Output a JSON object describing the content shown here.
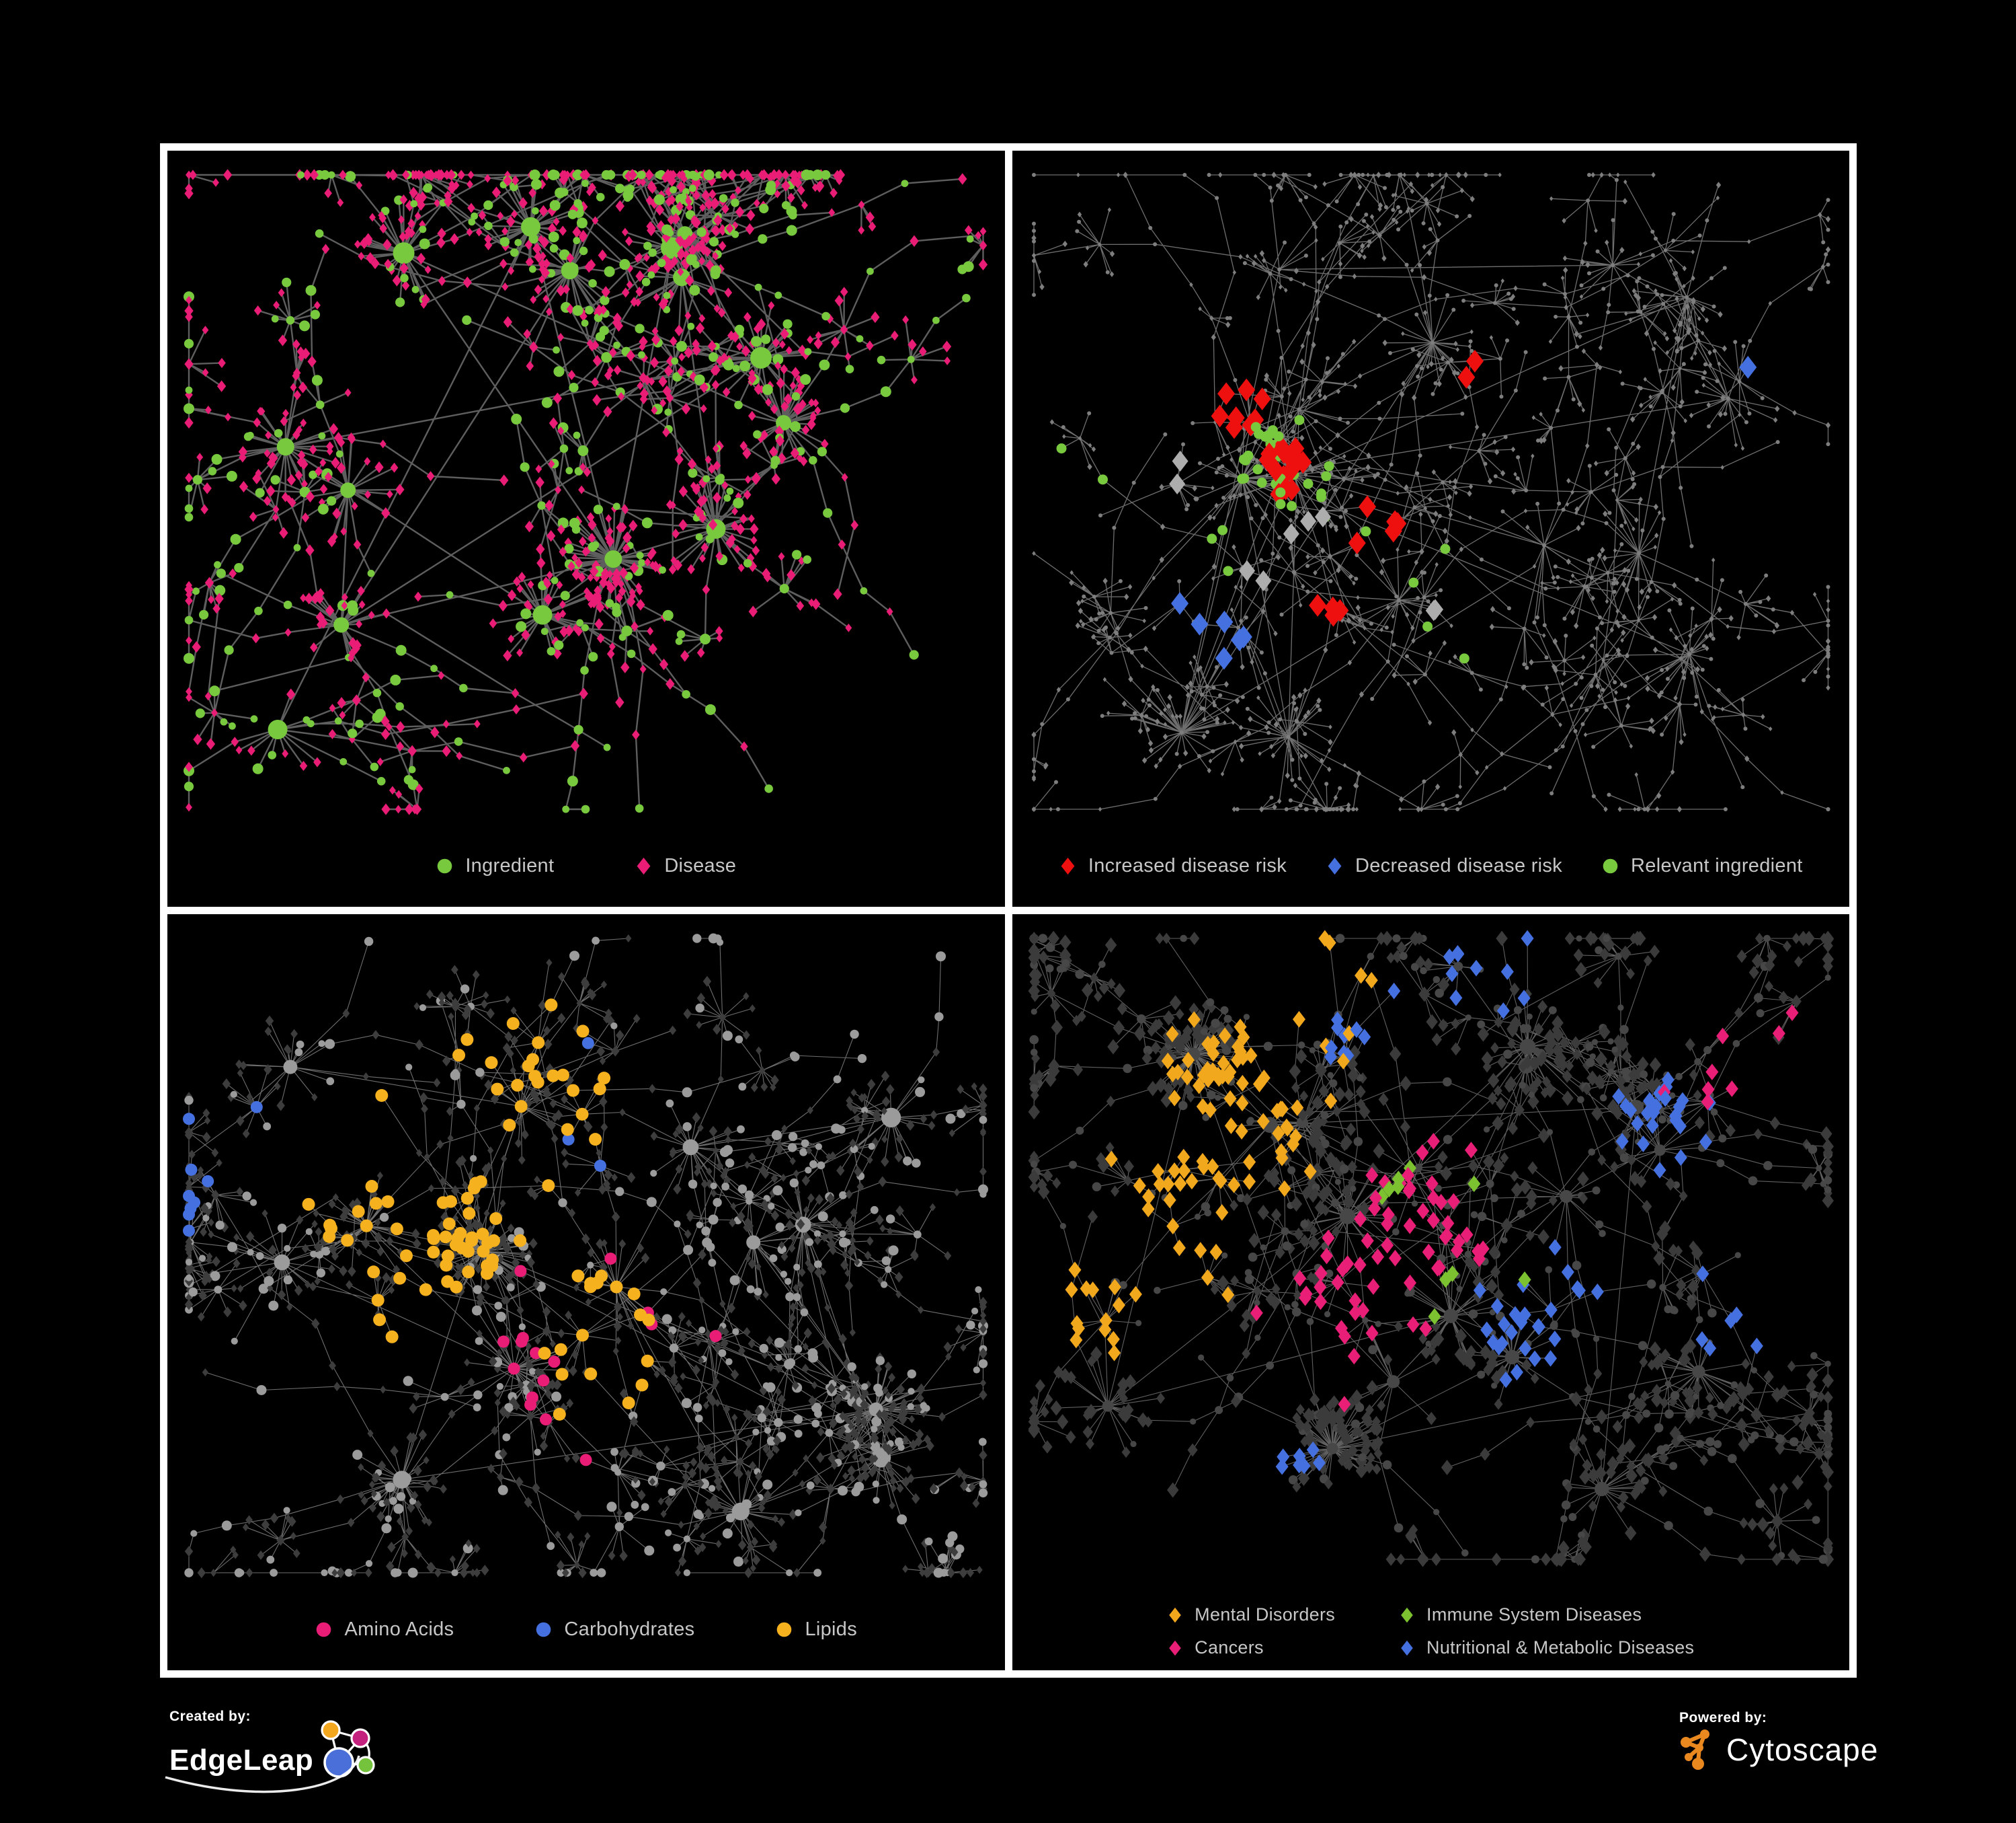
{
  "figure": {
    "background": "#000000",
    "frame_color": "#ffffff",
    "legend_text_color": "#C7C7C7"
  },
  "panels": [
    {
      "id": "ingredient-disease-network",
      "legend": {
        "columns": 1,
        "tight": false,
        "items": [
          {
            "shape": "circle",
            "color": "#78C93E",
            "label": "Ingredient"
          },
          {
            "shape": "diamond",
            "color": "#E91D76",
            "label": "Disease"
          }
        ]
      },
      "network": {
        "seed": 101,
        "hubs": 15,
        "burst": [
          6,
          38
        ],
        "superhub_factor": 2.4,
        "branches": [
          3,
          7
        ],
        "chain": [
          2,
          6
        ],
        "step": [
          45,
          115
        ],
        "miniburst_p": 0.26,
        "miniburst": [
          3,
          11
        ],
        "leaf_diamond_p": 0.76,
        "chain_diamond_p": 0.55,
        "extra_edges": 90,
        "extra_dist": 240,
        "bottom_margin": 185,
        "edge": {
          "color": "#6E6E6E",
          "width": 2.4,
          "opacity": 0.85
        },
        "base": {
          "flat": false,
          "circle_color": "#78C93E",
          "circle_r": 6.6,
          "hub_r": 11.5,
          "diamond_color": "#E91D76",
          "diamond_hw": 5.8
        },
        "highlights": []
      }
    },
    {
      "id": "disease-risk-network",
      "legend": {
        "columns": 1,
        "tight": true,
        "items": [
          {
            "shape": "diamond",
            "color": "#EE0F0F",
            "label": "Increased disease risk"
          },
          {
            "shape": "diamond",
            "color": "#4570E0",
            "label": "Decreased disease risk"
          },
          {
            "shape": "circle",
            "color": "#78C93E",
            "label": "Relevant ingredient"
          }
        ]
      },
      "network": {
        "seed": 202,
        "hubs": 15,
        "burst": [
          4,
          26
        ],
        "superhub_factor": 2.0,
        "branches": [
          3,
          8
        ],
        "chain": [
          2,
          7
        ],
        "step": [
          55,
          130
        ],
        "miniburst_p": 0.24,
        "miniburst": [
          3,
          10
        ],
        "leaf_diamond_p": 0.6,
        "chain_diamond_p": 0.55,
        "extra_edges": 55,
        "extra_dist": 220,
        "bottom_margin": 185,
        "edge": {
          "color": "#8A8A8A",
          "width": 1.3,
          "opacity": 0.8
        },
        "base": {
          "flat": true,
          "circle_color": "#7E7E7E",
          "circle_r": 3.0,
          "hub_r": 3.2,
          "diamond_color": "#7E7E7E",
          "diamond_hw": 3.2
        },
        "highlights": [
          {
            "shape": "diamond",
            "color": "#EE0F0F",
            "count": 34,
            "size": 13,
            "sigma": 0.17,
            "centers": [
              [
                0.33,
                0.42
              ],
              [
                0.26,
                0.34
              ],
              [
                0.44,
                0.5
              ],
              [
                0.55,
                0.3
              ],
              [
                0.37,
                0.62
              ],
              [
                0.64,
                0.8
              ]
            ]
          },
          {
            "shape": "diamond",
            "color": "#4570E0",
            "count": 7,
            "size": 13,
            "sigma": 0.05,
            "centers": [
              [
                0.235,
                0.6
              ],
              [
                0.255,
                0.635
              ],
              [
                0.875,
                0.265
              ]
            ]
          },
          {
            "shape": "diamond",
            "color": "#ADADAD",
            "count": 9,
            "size": 12,
            "sigma": 0.2,
            "centers": [
              [
                0.36,
                0.5
              ],
              [
                0.49,
                0.6
              ],
              [
                0.29,
                0.56
              ],
              [
                0.18,
                0.42
              ]
            ]
          },
          {
            "shape": "circle",
            "color": "#78C93E",
            "count": 42,
            "size": 7.5,
            "sigma": 0.15,
            "centers": [
              [
                0.345,
                0.44
              ],
              [
                0.3,
                0.4
              ],
              [
                0.46,
                0.52
              ],
              [
                0.25,
                0.52
              ],
              [
                0.52,
                0.66
              ],
              [
                0.12,
                0.4
              ]
            ]
          }
        ]
      }
    },
    {
      "id": "nutrient-class-network",
      "legend": {
        "columns": 1,
        "tight": false,
        "items": [
          {
            "shape": "circle",
            "color": "#E91D76",
            "label": "Amino Acids"
          },
          {
            "shape": "circle",
            "color": "#4570E0",
            "label": "Carbohydrates"
          },
          {
            "shape": "circle",
            "color": "#F5B11E",
            "label": "Lipids"
          }
        ]
      },
      "network": {
        "seed": 303,
        "hubs": 16,
        "burst": [
          6,
          34
        ],
        "superhub_factor": 2.6,
        "branches": [
          3,
          7
        ],
        "chain": [
          2,
          6
        ],
        "step": [
          50,
          120
        ],
        "miniburst_p": 0.26,
        "miniburst": [
          3,
          11
        ],
        "leaf_diamond_p": 0.74,
        "chain_diamond_p": 0.5,
        "extra_edges": 80,
        "extra_dist": 230,
        "bottom_margin": 185,
        "edge": {
          "color": "#9C9C9C",
          "width": 1.1,
          "opacity": 0.7
        },
        "base": {
          "flat": false,
          "circle_color": "#9B9B9B",
          "circle_r": 6.2,
          "hub_r": 10.5,
          "diamond_color": "#3D3D3D",
          "diamond_hw": 5.4
        },
        "highlights": [
          {
            "shape": "circle",
            "color": "#F5B11E",
            "count": 95,
            "size": 9.5,
            "sigma": 0.13,
            "centers": [
              [
                0.42,
                0.27
              ],
              [
                0.34,
                0.4
              ],
              [
                0.29,
                0.5
              ],
              [
                0.52,
                0.55
              ],
              [
                0.44,
                0.18
              ],
              [
                0.23,
                0.33
              ]
            ]
          },
          {
            "shape": "circle",
            "color": "#4570E0",
            "count": 12,
            "size": 9,
            "sigma": 0.06,
            "centers": [
              [
                0.47,
                0.21
              ],
              [
                0.5,
                0.27
              ],
              [
                0.03,
                0.32
              ]
            ]
          },
          {
            "shape": "circle",
            "color": "#E91D76",
            "count": 16,
            "size": 9,
            "sigma": 0.95,
            "centers": [
              [
                0.5,
                0.55
              ]
            ]
          }
        ]
      }
    },
    {
      "id": "disease-class-network",
      "legend": {
        "columns": 2,
        "tight": false,
        "items": [
          {
            "shape": "diamond",
            "color": "#F2A81C",
            "label": "Mental Disorders"
          },
          {
            "shape": "diamond",
            "color": "#7CC230",
            "label": "Immune System Diseases"
          },
          {
            "shape": "diamond",
            "color": "#E91E76",
            "label": "Cancers"
          },
          {
            "shape": "diamond",
            "color": "#4570E0",
            "label": "Nutritional & Metabolic Diseases"
          }
        ]
      },
      "network": {
        "seed": 404,
        "hubs": 16,
        "burst": [
          6,
          34
        ],
        "superhub_factor": 2.6,
        "branches": [
          3,
          7
        ],
        "chain": [
          2,
          6
        ],
        "step": [
          50,
          120
        ],
        "miniburst_p": 0.27,
        "miniburst": [
          3,
          11
        ],
        "leaf_diamond_p": 0.8,
        "chain_diamond_p": 0.6,
        "extra_edges": 95,
        "extra_dist": 230,
        "bottom_margin": 205,
        "edge": {
          "color": "#9B9B9B",
          "width": 1.1,
          "opacity": 0.62
        },
        "base": {
          "flat": false,
          "circle_color": "#474747",
          "circle_r": 5.6,
          "hub_r": 8.5,
          "diamond_color": "#3B3B3B",
          "diamond_hw": 7.6
        },
        "highlights": [
          {
            "shape": "diamond",
            "color": "#F2A81C",
            "count": 105,
            "size": 9.5,
            "sigma": 0.11,
            "centers": [
              [
                0.16,
                0.42
              ],
              [
                0.22,
                0.34
              ],
              [
                0.12,
                0.5
              ],
              [
                0.27,
                0.24
              ],
              [
                0.34,
                0.1
              ]
            ]
          },
          {
            "shape": "diamond",
            "color": "#E91E76",
            "count": 72,
            "size": 9.5,
            "sigma": 0.1,
            "centers": [
              [
                0.44,
                0.46
              ],
              [
                0.5,
                0.4
              ],
              [
                0.38,
                0.54
              ],
              [
                0.87,
                0.22
              ],
              [
                0.3,
                0.88
              ]
            ]
          },
          {
            "shape": "diamond",
            "color": "#4570E0",
            "count": 85,
            "size": 9.5,
            "sigma": 0.15,
            "centers": [
              [
                0.7,
                0.46
              ],
              [
                0.78,
                0.29
              ],
              [
                0.62,
                0.55
              ],
              [
                0.4,
                0.13
              ],
              [
                0.86,
                0.55
              ],
              [
                0.3,
                0.74
              ],
              [
                0.55,
                0.08
              ]
            ]
          },
          {
            "shape": "diamond",
            "color": "#7CC230",
            "count": 10,
            "size": 9.5,
            "sigma": 0.95,
            "centers": [
              [
                0.5,
                0.42
              ]
            ]
          }
        ]
      }
    }
  ],
  "footer": {
    "created_by_label": "Created by:",
    "created_by_brand": "EdgeLeap",
    "powered_by_label": "Powered by:",
    "powered_by_brand": "Cytoscape",
    "edgeleap_logo_colors": {
      "hub_blue": "#4A6FD8",
      "orange": "#F2A71F",
      "magenta": "#C4207E",
      "green": "#75C33C"
    },
    "cytoscape_logo_color": "#E8881F"
  },
  "icons": {
    "edgeleap_logo": "network-nodes-logo-icon",
    "cytoscape_logo": "orange-network-logo-icon"
  }
}
